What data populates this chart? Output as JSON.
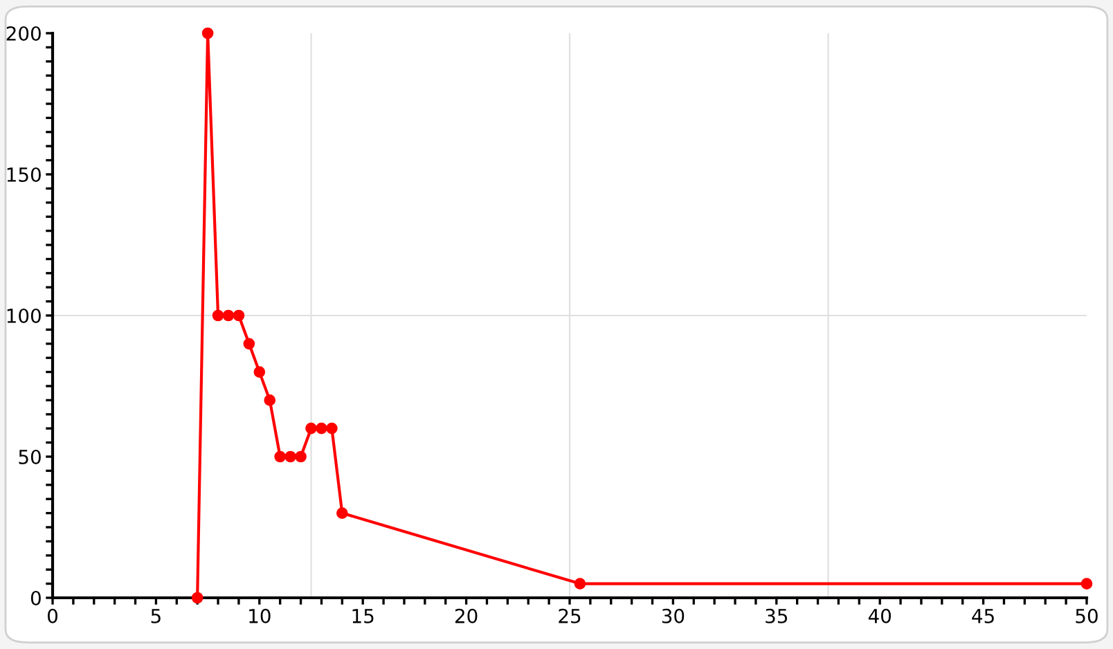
{
  "chart_data": {
    "type": "line",
    "marker": "circle",
    "line_style": "solid",
    "x": [
      7,
      7.5,
      8,
      8.5,
      9,
      9.5,
      10,
      10.5,
      11,
      11.5,
      12,
      12.5,
      13,
      13.5,
      14,
      25.5,
      50
    ],
    "series": [
      {
        "color": "#ff0000",
        "values": [
          0,
          200,
          100,
          100,
          100,
          90,
          80,
          70,
          50,
          50,
          50,
          60,
          60,
          60,
          30,
          5,
          5
        ]
      }
    ],
    "xlim": [
      0,
      50
    ],
    "ylim": [
      0,
      200
    ],
    "xticks": [
      0,
      {
        "value": 1,
        "label": null
      },
      {
        "value": 2,
        "label": null
      },
      {
        "value": 3,
        "label": null
      },
      {
        "value": 4,
        "label": null
      },
      5,
      {
        "value": 6,
        "label": null
      },
      {
        "value": 7,
        "label": null
      },
      {
        "value": 8,
        "label": null
      },
      {
        "value": 9,
        "label": null
      },
      10,
      {
        "value": 11,
        "label": null
      },
      {
        "value": 12,
        "label": null
      },
      {
        "value": 13,
        "label": null
      },
      {
        "value": 14,
        "label": null
      },
      15,
      {
        "value": 16,
        "label": null
      },
      {
        "value": 17,
        "label": null
      },
      {
        "value": 18,
        "label": null
      },
      {
        "value": 19,
        "label": null
      },
      20,
      {
        "value": 21,
        "label": null
      },
      {
        "value": 22,
        "label": null
      },
      {
        "value": 23,
        "label": null
      },
      {
        "value": 24,
        "label": null
      },
      25,
      {
        "value": 26,
        "label": null
      },
      {
        "value": 27,
        "label": null
      },
      {
        "value": 28,
        "label": null
      },
      {
        "value": 29,
        "label": null
      },
      30,
      {
        "value": 31,
        "label": null
      },
      {
        "value": 32,
        "label": null
      },
      {
        "value": 33,
        "label": null
      },
      {
        "value": 34,
        "label": null
      },
      35,
      {
        "value": 36,
        "label": null
      },
      {
        "value": 37,
        "label": null
      },
      {
        "value": 38,
        "label": null
      },
      {
        "value": 39,
        "label": null
      },
      40,
      {
        "value": 41,
        "label": null
      },
      {
        "value": 42,
        "label": null
      },
      {
        "value": 43,
        "label": null
      },
      {
        "value": 44,
        "label": null
      },
      45,
      {
        "value": 46,
        "label": null
      },
      {
        "value": 47,
        "label": null
      },
      {
        "value": 48,
        "label": null
      },
      {
        "value": 49,
        "label": null
      },
      50
    ],
    "yticks": [
      0,
      {
        "value": 5,
        "label": null
      },
      {
        "value": 10,
        "label": null
      },
      {
        "value": 15,
        "label": null
      },
      {
        "value": 20,
        "label": null
      },
      {
        "value": 25,
        "label": null
      },
      {
        "value": 30,
        "label": null
      },
      {
        "value": 35,
        "label": null
      },
      {
        "value": 40,
        "label": null
      },
      {
        "value": 45,
        "label": null
      },
      50,
      {
        "value": 55,
        "label": null
      },
      {
        "value": 60,
        "label": null
      },
      {
        "value": 65,
        "label": null
      },
      {
        "value": 70,
        "label": null
      },
      {
        "value": 75,
        "label": null
      },
      {
        "value": 80,
        "label": null
      },
      {
        "value": 85,
        "label": null
      },
      {
        "value": 90,
        "label": null
      },
      {
        "value": 95,
        "label": null
      },
      100,
      {
        "value": 105,
        "label": null
      },
      {
        "value": 110,
        "label": null
      },
      {
        "value": 115,
        "label": null
      },
      {
        "value": 120,
        "label": null
      },
      {
        "value": 125,
        "label": null
      },
      {
        "value": 130,
        "label": null
      },
      {
        "value": 135,
        "label": null
      },
      {
        "value": 140,
        "label": null
      },
      {
        "value": 145,
        "label": null
      },
      150,
      {
        "value": 155,
        "label": null
      },
      {
        "value": 160,
        "label": null
      },
      {
        "value": 165,
        "label": null
      },
      {
        "value": 170,
        "label": null
      },
      {
        "value": 175,
        "label": null
      },
      {
        "value": 180,
        "label": null
      },
      {
        "value": 185,
        "label": null
      },
      {
        "value": 190,
        "label": null
      },
      {
        "value": 195,
        "label": null
      },
      200
    ],
    "ref_lines": [
      {
        "axis": "x",
        "value": 12.5,
        "color": "#e0e0e0",
        "line_style": "solid"
      },
      {
        "axis": "x",
        "value": 25,
        "color": "#e0e0e0",
        "line_style": "solid"
      },
      {
        "axis": "x",
        "value": 37.5,
        "color": "#e0e0e0",
        "line_style": "solid"
      },
      {
        "axis": "y",
        "value": 100,
        "color": "#e0e0e0",
        "line_style": "solid"
      }
    ]
  }
}
